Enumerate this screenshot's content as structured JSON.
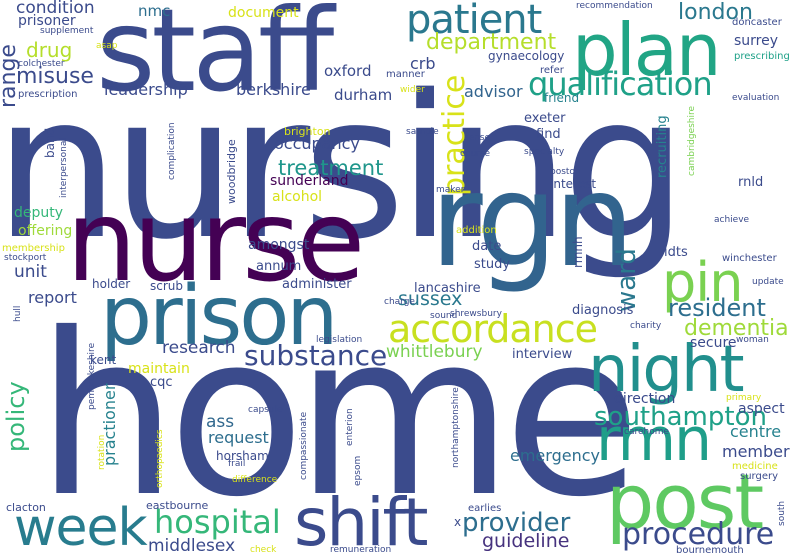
{
  "palette": {
    "background": "#ffffff",
    "scale": [
      "#440154",
      "#46327e",
      "#365c8d",
      "#277f8e",
      "#1fa187",
      "#4ac16d",
      "#a0da39",
      "#d8e219"
    ]
  },
  "words": [
    {
      "text": "nursing",
      "color": "#3b4b8c"
    },
    {
      "text": "home",
      "color": "#3b4b8c"
    },
    {
      "text": "nurse",
      "color": "#440154"
    },
    {
      "text": "staff",
      "color": "#3b4b8c"
    },
    {
      "text": "rgn",
      "color": "#32648e"
    },
    {
      "text": "prison",
      "color": "#2d6e8e"
    },
    {
      "text": "plan",
      "color": "#21a585"
    },
    {
      "text": "post",
      "color": "#5ec962"
    },
    {
      "text": "night",
      "color": "#218f8d"
    },
    {
      "text": "shift",
      "color": "#3b4b8c"
    },
    {
      "text": "week",
      "color": "#287c8e"
    },
    {
      "text": "patient",
      "color": "#2a788e"
    },
    {
      "text": "rmn",
      "color": "#1f9e89"
    },
    {
      "text": "pin",
      "color": "#7ad151"
    },
    {
      "text": "accordance",
      "color": "#c8e020"
    },
    {
      "text": "qualification",
      "color": "#1fa188"
    },
    {
      "text": "practice",
      "color": "#d8e219"
    },
    {
      "text": "hospital",
      "color": "#35b779"
    },
    {
      "text": "procedure",
      "color": "#3b4b8c"
    },
    {
      "text": "substance",
      "color": "#3b4b8c"
    },
    {
      "text": "provider",
      "color": "#2d6e8e"
    },
    {
      "text": "southampton",
      "color": "#1fa188"
    },
    {
      "text": "resident",
      "color": "#2d6e8e"
    },
    {
      "text": "dementia",
      "color": "#9fda3a"
    },
    {
      "text": "department",
      "color": "#b5de2b"
    },
    {
      "text": "treatment",
      "color": "#1f968b"
    },
    {
      "text": "policy",
      "color": "#35b779"
    },
    {
      "text": "ward",
      "color": "#2a788e"
    },
    {
      "text": "london",
      "color": "#2a788e"
    },
    {
      "text": "misuse",
      "color": "#3b4b8c"
    },
    {
      "text": "range",
      "color": "#3b4b8c"
    },
    {
      "text": "drug",
      "color": "#b5de2b"
    },
    {
      "text": "condition",
      "color": "#3b4b8c"
    },
    {
      "text": "research",
      "color": "#3b4b8c"
    },
    {
      "text": "sussex",
      "color": "#2a788e"
    },
    {
      "text": "whittlebury",
      "color": "#7ad151"
    },
    {
      "text": "guideline",
      "color": "#46327e"
    },
    {
      "text": "middlesex",
      "color": "#3b4b8c"
    },
    {
      "text": "centre",
      "color": "#26828e"
    },
    {
      "text": "ass",
      "color": "#31688e"
    },
    {
      "text": "request",
      "color": "#2d6e8e"
    },
    {
      "text": "emergency",
      "color": "#2d6e8e"
    },
    {
      "text": "practioner",
      "color": "#26828e"
    },
    {
      "text": "member",
      "color": "#3b4b8c"
    },
    {
      "text": "advisor",
      "color": "#32648e"
    },
    {
      "text": "leadership",
      "color": "#3b4b8c"
    },
    {
      "text": "report",
      "color": "#3b4b8c"
    },
    {
      "text": "unit",
      "color": "#3b4b8c"
    },
    {
      "text": "berkshire",
      "color": "#3b4b8c"
    },
    {
      "text": "durham",
      "color": "#3b4b8c"
    },
    {
      "text": "occupancy",
      "color": "#3b4b8c"
    },
    {
      "text": "sunderland",
      "color": "#440154"
    },
    {
      "text": "alcohol",
      "color": "#d8e219"
    },
    {
      "text": "crb",
      "color": "#3b4b8c"
    },
    {
      "text": "oxford",
      "color": "#3b4b8c"
    },
    {
      "text": "nmc",
      "color": "#2d6e8e"
    },
    {
      "text": "document",
      "color": "#d8e219"
    },
    {
      "text": "prisoner",
      "color": "#3b4b8c"
    },
    {
      "text": "surrey",
      "color": "#3b4b8c"
    },
    {
      "text": "aspect",
      "color": "#3b4b8c"
    },
    {
      "text": "direction",
      "color": "#3b4b8c"
    },
    {
      "text": "secure",
      "color": "#3b4b8c"
    },
    {
      "text": "interview",
      "color": "#3b4b8c"
    },
    {
      "text": "diagnosis",
      "color": "#3b4b8c"
    },
    {
      "text": "lancashire",
      "color": "#3b4b8c"
    },
    {
      "text": "deputy",
      "color": "#35b779"
    },
    {
      "text": "offering",
      "color": "#9fda3a"
    },
    {
      "text": "amongst",
      "color": "#3b4b8c"
    },
    {
      "text": "annum",
      "color": "#3b4b8c"
    },
    {
      "text": "administer",
      "color": "#3b4b8c"
    },
    {
      "text": "maintain",
      "color": "#d8e219"
    },
    {
      "text": "cqc",
      "color": "#3b4b8c"
    },
    {
      "text": "horsham",
      "color": "#3b4b8c"
    },
    {
      "text": "scrub",
      "color": "#3b4b8c"
    },
    {
      "text": "holder",
      "color": "#3b4b8c"
    },
    {
      "text": "kent",
      "color": "#3b4b8c"
    },
    {
      "text": "band",
      "color": "#3b4b8c"
    },
    {
      "text": "find",
      "color": "#3b4b8c"
    },
    {
      "text": "exeter",
      "color": "#3b4b8c"
    },
    {
      "text": "interest",
      "color": "#3b4b8c"
    },
    {
      "text": "date",
      "color": "#3b4b8c"
    },
    {
      "text": "study",
      "color": "#3b4b8c"
    },
    {
      "text": "rmnh",
      "color": "#3b4b8c"
    },
    {
      "text": "idts",
      "color": "#3b4b8c"
    },
    {
      "text": "rnld",
      "color": "#3b4b8c"
    },
    {
      "text": "recruiting",
      "color": "#26828e"
    },
    {
      "text": "gynaecology",
      "color": "#3b4b8c"
    },
    {
      "text": "friend",
      "color": "#26828e"
    },
    {
      "text": "doncaster",
      "color": "#3b4b8c"
    },
    {
      "text": "prescribing",
      "color": "#1fa188"
    },
    {
      "text": "recommendation",
      "color": "#3b4b8c"
    },
    {
      "text": "evaluation",
      "color": "#3b4b8c"
    },
    {
      "text": "prescription",
      "color": "#3b4b8c"
    },
    {
      "text": "supplement",
      "color": "#3b4b8c"
    },
    {
      "text": "asap",
      "color": "#d8e219"
    },
    {
      "text": "colchester",
      "color": "#3b4b8c"
    },
    {
      "text": "manner",
      "color": "#3b4b8c"
    },
    {
      "text": "wider",
      "color": "#d8e219"
    },
    {
      "text": "refer",
      "color": "#3b4b8c"
    },
    {
      "text": "brighton",
      "color": "#d8e219"
    },
    {
      "text": "woodbridge",
      "color": "#3b4b8c"
    },
    {
      "text": "complication",
      "color": "#3b4b8c"
    },
    {
      "text": "interpersonal",
      "color": "#3b4b8c"
    },
    {
      "text": "sample",
      "color": "#3b4b8c"
    },
    {
      "text": "sense",
      "color": "#3b4b8c"
    },
    {
      "text": "course",
      "color": "#3b4b8c"
    },
    {
      "text": "specialty",
      "color": "#3b4b8c"
    },
    {
      "text": "boston",
      "color": "#3b4b8c"
    },
    {
      "text": "maker",
      "color": "#3b4b8c"
    },
    {
      "text": "addition",
      "color": "#d8e219"
    },
    {
      "text": "achieve",
      "color": "#3b4b8c"
    },
    {
      "text": "cambridgeshire",
      "color": "#7ad151"
    },
    {
      "text": "membership",
      "color": "#d8e219"
    },
    {
      "text": "stockport",
      "color": "#3b4b8c"
    },
    {
      "text": "winchester",
      "color": "#3b4b8c"
    },
    {
      "text": "update",
      "color": "#3b4b8c"
    },
    {
      "text": "charge",
      "color": "#3b4b8c"
    },
    {
      "text": "shrewsbury",
      "color": "#3b4b8c"
    },
    {
      "text": "sound",
      "color": "#3b4b8c"
    },
    {
      "text": "charity",
      "color": "#3b4b8c"
    },
    {
      "text": "hull",
      "color": "#3b4b8c"
    },
    {
      "text": "legislation",
      "color": "#3b4b8c"
    },
    {
      "text": "woman",
      "color": "#3b4b8c"
    },
    {
      "text": "capsule",
      "color": "#3b4b8c"
    },
    {
      "text": "primary",
      "color": "#d8e219"
    },
    {
      "text": "carehome",
      "color": "#3b4b8c"
    },
    {
      "text": "medicine",
      "color": "#d8e219"
    },
    {
      "text": "surgery",
      "color": "#3b4b8c"
    },
    {
      "text": "pembrokeshire",
      "color": "#3b4b8c"
    },
    {
      "text": "rotation",
      "color": "#d8e219"
    },
    {
      "text": "orthopaedics",
      "color": "#d8e219"
    },
    {
      "text": "compassionate",
      "color": "#3b4b8c"
    },
    {
      "text": "enterion",
      "color": "#3b4b8c"
    },
    {
      "text": "epsom",
      "color": "#3b4b8c"
    },
    {
      "text": "frail",
      "color": "#3b4b8c"
    },
    {
      "text": "difference",
      "color": "#d8e219"
    },
    {
      "text": "northamptonshire",
      "color": "#3b4b8c"
    },
    {
      "text": "eastbourne",
      "color": "#3b4b8c"
    },
    {
      "text": "clacton",
      "color": "#3b4b8c"
    },
    {
      "text": "earlies",
      "color": "#3b4b8c"
    },
    {
      "text": "remuneration",
      "color": "#3b4b8c"
    },
    {
      "text": "check",
      "color": "#d8e219"
    },
    {
      "text": "bournemouth",
      "color": "#3b4b8c"
    },
    {
      "text": "south",
      "color": "#3b4b8c"
    },
    {
      "text": "x",
      "color": "#3b4b8c"
    }
  ]
}
